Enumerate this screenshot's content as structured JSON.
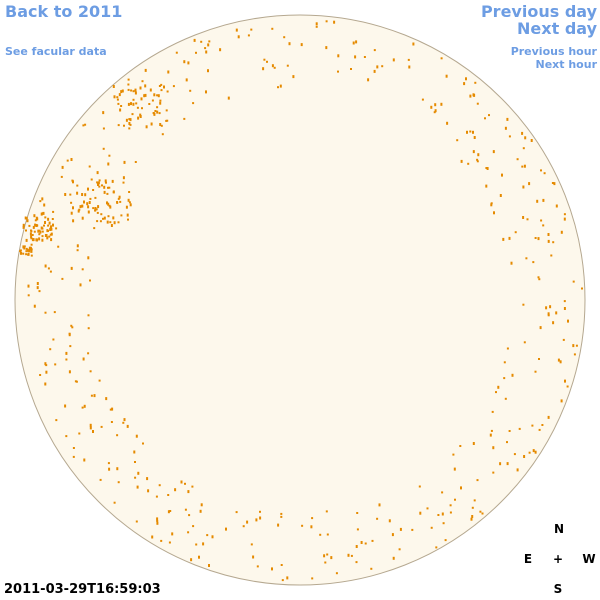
{
  "links": {
    "back": "Back to 2011",
    "facular_data": "See facular data",
    "previous_day": "Previous day",
    "next_day": "Next day",
    "previous_hour": "Previous hour",
    "next_hour": "Next hour"
  },
  "compass": {
    "north": "N",
    "east": "E",
    "center": "+",
    "west": "W",
    "south": "S"
  },
  "timestamp": "2011-03-29T16:59:03"
}
